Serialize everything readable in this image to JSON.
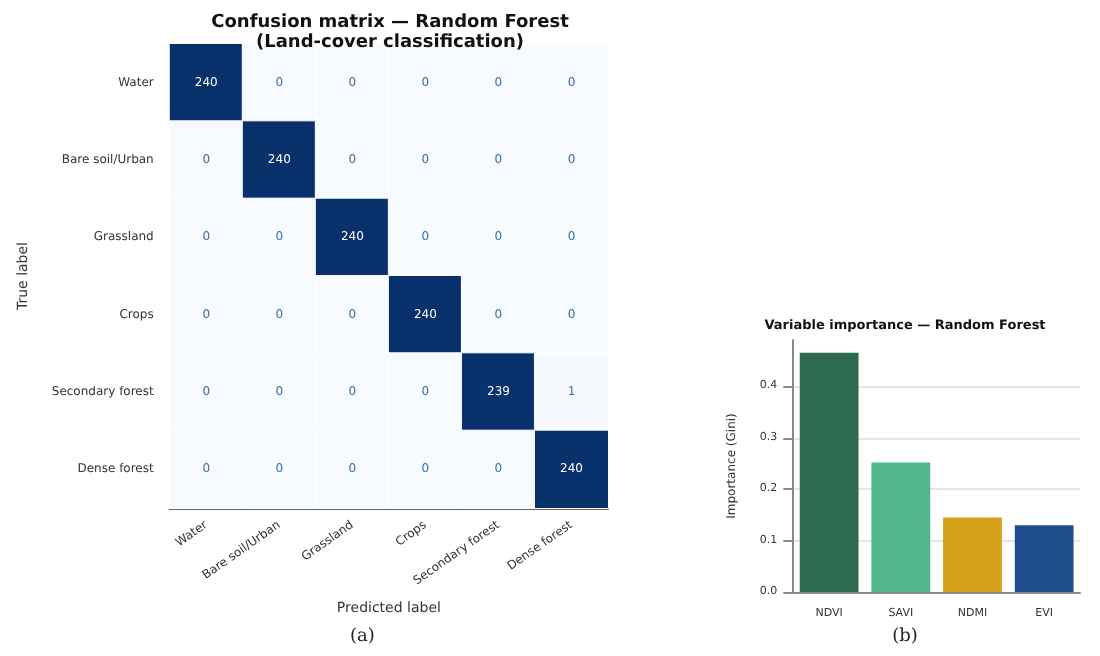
{
  "chart_data": [
    {
      "type": "heatmap",
      "title": "Confusion matrix — Random Forest",
      "subtitle": "(Land-cover classification)",
      "xlabel": "Predicted label",
      "ylabel": "True label",
      "annotations": [
        "(a)"
      ],
      "categories": [
        "Water",
        "Bare soil/Urban",
        "Grassland",
        "Crops",
        "Secondary forest",
        "Dense forest"
      ],
      "y_categories": [
        "Water",
        "Bare soil/Urban",
        "Grassland",
        "Crops",
        "Secondary forest",
        "Dense forest"
      ],
      "cells": [
        [
          240,
          0,
          0,
          0,
          0,
          0
        ],
        [
          0,
          240,
          0,
          0,
          0,
          0
        ],
        [
          0,
          0,
          240,
          0,
          0,
          0
        ],
        [
          0,
          0,
          0,
          240,
          0,
          0
        ],
        [
          0,
          0,
          0,
          0,
          239,
          1
        ],
        [
          0,
          0,
          0,
          0,
          0,
          240
        ]
      ],
      "data_labels": true
    },
    {
      "type": "bar",
      "title": "Variable importance — Random Forest",
      "ylabel": "Importance (Gini)",
      "annotations": [
        "(b)"
      ],
      "categories": [
        "NDVI",
        "SAVI",
        "NDMI",
        "EVI"
      ],
      "values": [
        0.465,
        0.252,
        0.145,
        0.13
      ],
      "colors": [
        "#2d6a4f",
        "#52b788",
        "#d4a017",
        "#1f4e8c"
      ],
      "ylim": [
        0,
        0.49
      ],
      "yticks": [
        {
          "value": 0,
          "label": "0.0"
        },
        {
          "value": 0.1,
          "label": "0.1"
        },
        {
          "value": 0.2,
          "label": "0.2"
        },
        {
          "value": 0.3,
          "label": "0.3"
        },
        {
          "value": 0.4,
          "label": "0.4"
        }
      ],
      "grid": "y"
    }
  ]
}
